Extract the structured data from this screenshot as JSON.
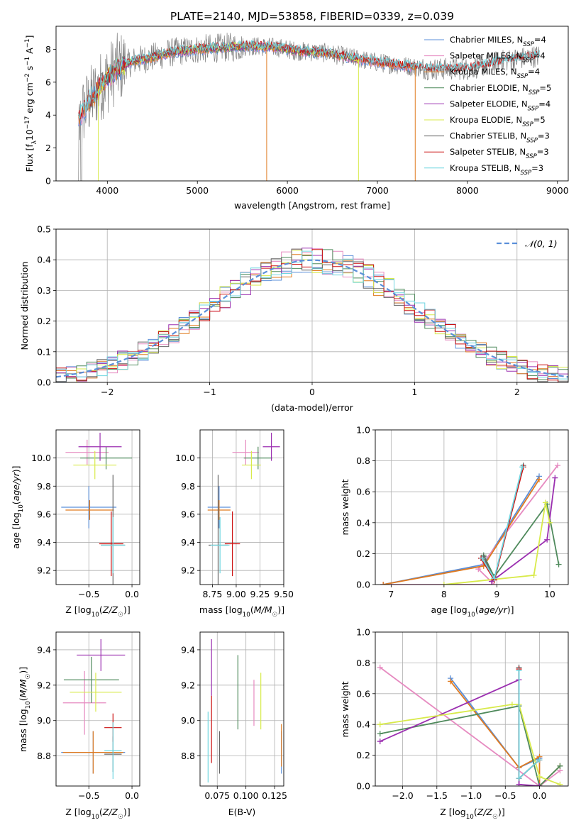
{
  "figure_title": "PLATE=2140, MJD=53858, FIBERID=0339, z=0.039",
  "colors": {
    "Chabrier MILES": "#5b8fd9",
    "Salpeter MILES": "#e68ac0",
    "Kroupa MILES": "#e07a1f",
    "Chabrier ELODIE": "#4f8a5c",
    "Salpeter ELODIE": "#9b2fb0",
    "Kroupa ELODIE": "#d8ea4a",
    "Chabrier STELIB": "#666666",
    "Salpeter STELIB": "#cc1111",
    "Kroupa STELIB": "#6fd6e0"
  },
  "chart_data": [
    {
      "id": "spectrum",
      "type": "line",
      "title": "PLATE=2140, MJD=53858, FIBERID=0339, z=0.039",
      "xlabel": "wavelength [Angstrom, rest frame]",
      "ylabel": "Flux [f_λ 10^-17 erg cm^-2 s^-1 A^-1]",
      "xlim": [
        3430,
        9120
      ],
      "ylim": [
        0,
        9.4
      ],
      "xticks": [
        4000,
        5000,
        6000,
        7000,
        8000,
        9000
      ],
      "yticks": [
        0,
        2,
        4,
        6,
        8
      ],
      "grid": false,
      "legend_position": "upper-right",
      "legend": [
        {
          "label": "Chabrier MILES",
          "nssp": "4"
        },
        {
          "label": "Salpeter MILES",
          "nssp": "4"
        },
        {
          "label": "Kroupa MILES",
          "nssp": "4"
        },
        {
          "label": "Chabrier ELODIE",
          "nssp": "5"
        },
        {
          "label": "Salpeter ELODIE",
          "nssp": "4"
        },
        {
          "label": "Kroupa ELODIE",
          "nssp": "5"
        },
        {
          "label": "Chabrier STELIB",
          "nssp": "3"
        },
        {
          "label": "Salpeter STELIB",
          "nssp": "3"
        },
        {
          "label": "Kroupa STELIB",
          "nssp": "3"
        }
      ],
      "continuum": [
        [
          3680,
          3.8
        ],
        [
          3800,
          4.8
        ],
        [
          3900,
          5.6
        ],
        [
          4000,
          6.2
        ],
        [
          4100,
          6.8
        ],
        [
          4300,
          7.3
        ],
        [
          4500,
          7.5
        ],
        [
          4700,
          7.8
        ],
        [
          5000,
          8.0
        ],
        [
          5300,
          8.1
        ],
        [
          5600,
          8.2
        ],
        [
          5900,
          8.1
        ],
        [
          6100,
          7.9
        ],
        [
          6400,
          7.8
        ],
        [
          6700,
          7.5
        ],
        [
          7000,
          7.2
        ],
        [
          7300,
          7.0
        ],
        [
          7600,
          6.8
        ],
        [
          8000,
          6.8
        ],
        [
          8400,
          7.3
        ],
        [
          8800,
          7.6
        ],
        [
          9000,
          7.7
        ]
      ],
      "noisy_line": {
        "x_start": 3680,
        "x_end": 8800,
        "step": 5,
        "noise": 0.6
      },
      "model_segments": [
        {
          "series": "Chabrier MILES",
          "x_start": 3680,
          "x_end": 7400
        },
        {
          "series": "Salpeter MILES",
          "x_start": 3680,
          "x_end": 7400
        },
        {
          "series": "Kroupa MILES",
          "x_start": 3680,
          "x_end": 7420
        },
        {
          "series": "Chabrier ELODIE",
          "x_start": 3900,
          "x_end": 6800
        },
        {
          "series": "Salpeter ELODIE",
          "x_start": 3900,
          "x_end": 6800
        },
        {
          "series": "Kroupa ELODIE",
          "x_start": 3900,
          "x_end": 6800
        },
        {
          "series": "Chabrier STELIB",
          "x_start": 3680,
          "x_end": 8800
        },
        {
          "series": "Salpeter STELIB",
          "x_start": 3680,
          "x_end": 8800
        },
        {
          "series": "Kroupa STELIB",
          "x_start": 3680,
          "x_end": 8800
        }
      ]
    },
    {
      "id": "residuals",
      "type": "histogram",
      "xlabel": "(data-model)/error",
      "ylabel": "Normed distribution",
      "xlim": [
        -2.5,
        2.5
      ],
      "ylim": [
        0,
        0.5
      ],
      "xticks": [
        -2,
        -1,
        0,
        1,
        2
      ],
      "yticks": [
        0.0,
        0.1,
        0.2,
        0.3,
        0.4,
        0.5
      ],
      "grid": true,
      "legend_position": "upper-right",
      "reference_curve": "𝒩(0, 1)",
      "bin_width": 0.1,
      "n_histograms": 9,
      "jitter": 0.03
    },
    {
      "id": "age_vs_z",
      "type": "errorbar",
      "xlabel": "Z [log10(Z/Z☉)]",
      "ylabel": "age  [log10(age/yr)]",
      "xlim": [
        -0.88,
        0.09
      ],
      "ylim": [
        9.1,
        10.2
      ],
      "xticks": [
        -0.5,
        0.0
      ],
      "yticks": [
        9.2,
        9.4,
        9.6,
        9.8,
        10.0
      ],
      "grid": true,
      "points": [
        {
          "series": "Chabrier MILES",
          "x": -0.5,
          "y": 9.65,
          "xerr": 0.32,
          "yerr": 0.15
        },
        {
          "series": "Salpeter MILES",
          "x": -0.52,
          "y": 10.04,
          "xerr": 0.25,
          "yerr": 0.09
        },
        {
          "series": "Kroupa MILES",
          "x": -0.49,
          "y": 9.63,
          "xerr": 0.28,
          "yerr": 0.07
        },
        {
          "series": "Chabrier ELODIE",
          "x": -0.3,
          "y": 10.0,
          "xerr": 0.3,
          "yerr": 0.08
        },
        {
          "series": "Salpeter ELODIE",
          "x": -0.37,
          "y": 10.08,
          "xerr": 0.25,
          "yerr": 0.1
        },
        {
          "series": "Kroupa ELODIE",
          "x": -0.43,
          "y": 9.95,
          "xerr": 0.25,
          "yerr": 0.1
        },
        {
          "series": "Chabrier STELIB",
          "x": -0.22,
          "y": 9.38,
          "xerr": 0.14,
          "yerr": 0.5
        },
        {
          "series": "Salpeter STELIB",
          "x": -0.24,
          "y": 9.39,
          "xerr": 0.14,
          "yerr": 0.23
        },
        {
          "series": "Kroupa STELIB",
          "x": -0.22,
          "y": 9.38,
          "xerr": 0.14,
          "yerr": 0.2
        }
      ]
    },
    {
      "id": "age_vs_mass",
      "type": "errorbar",
      "xlabel": "mass [log10(M/M☉)]",
      "ylabel": "",
      "xlim": [
        8.62,
        9.5
      ],
      "ylim": [
        9.1,
        10.2
      ],
      "xticks": [
        8.75,
        9.0,
        9.25,
        9.5
      ],
      "yticks": [
        9.2,
        9.4,
        9.6,
        9.8,
        10.0
      ],
      "grid": true,
      "points": [
        {
          "series": "Chabrier MILES",
          "x": 8.82,
          "y": 9.65,
          "xerr": 0.12,
          "yerr": 0.15
        },
        {
          "series": "Salpeter MILES",
          "x": 9.1,
          "y": 10.04,
          "xerr": 0.14,
          "yerr": 0.09
        },
        {
          "series": "Kroupa MILES",
          "x": 8.82,
          "y": 9.63,
          "xerr": 0.12,
          "yerr": 0.07
        },
        {
          "series": "Chabrier ELODIE",
          "x": 9.23,
          "y": 10.0,
          "xerr": 0.15,
          "yerr": 0.08
        },
        {
          "series": "Salpeter ELODIE",
          "x": 9.37,
          "y": 10.08,
          "xerr": 0.09,
          "yerr": 0.1
        },
        {
          "series": "Kroupa ELODIE",
          "x": 9.16,
          "y": 9.95,
          "xerr": 0.1,
          "yerr": 0.1
        },
        {
          "series": "Chabrier STELIB",
          "x": 8.81,
          "y": 9.38,
          "xerr": 0.1,
          "yerr": 0.5
        },
        {
          "series": "Salpeter STELIB",
          "x": 8.96,
          "y": 9.39,
          "xerr": 0.08,
          "yerr": 0.23
        },
        {
          "series": "Kroupa STELIB",
          "x": 8.83,
          "y": 9.38,
          "xerr": 0.1,
          "yerr": 0.2
        }
      ]
    },
    {
      "id": "mass_weight_vs_age",
      "type": "line",
      "xlabel": "age  [log10(age/yr)]",
      "ylabel": "mass weight",
      "xlim": [
        6.7,
        10.35
      ],
      "ylim": [
        0,
        1.0
      ],
      "xticks": [
        7,
        8,
        9,
        10
      ],
      "yticks": [
        0.0,
        0.2,
        0.4,
        0.6,
        0.8,
        1.0
      ],
      "grid": true,
      "series": [
        {
          "name": "Chabrier MILES",
          "points": [
            [
              6.85,
              0.0
            ],
            [
              8.75,
              0.13
            ],
            [
              9.8,
              0.7
            ]
          ]
        },
        {
          "name": "Salpeter MILES",
          "points": [
            [
              6.85,
              0.0
            ],
            [
              8.95,
              0.0
            ],
            [
              8.65,
              0.1
            ],
            [
              10.15,
              0.77
            ]
          ]
        },
        {
          "name": "Kroupa MILES",
          "points": [
            [
              6.85,
              0.0
            ],
            [
              8.75,
              0.12
            ],
            [
              9.8,
              0.68
            ]
          ]
        },
        {
          "name": "Chabrier ELODIE",
          "points": [
            [
              8.75,
              0.19
            ],
            [
              8.95,
              0.05
            ],
            [
              9.95,
              0.52
            ],
            [
              10.17,
              0.13
            ]
          ]
        },
        {
          "name": "Salpeter ELODIE",
          "points": [
            [
              8.9,
              0.02
            ],
            [
              9.95,
              0.29
            ],
            [
              10.1,
              0.69
            ]
          ]
        },
        {
          "name": "Kroupa ELODIE",
          "points": [
            [
              8.0,
              0.0
            ],
            [
              9.7,
              0.06
            ],
            [
              9.92,
              0.53
            ],
            [
              10.0,
              0.4
            ]
          ]
        },
        {
          "name": "Chabrier STELIB",
          "points": [
            [
              8.75,
              0.18
            ],
            [
              8.95,
              0.03
            ],
            [
              9.5,
              0.77
            ]
          ]
        },
        {
          "name": "Salpeter STELIB",
          "points": [
            [
              8.7,
              0.17
            ],
            [
              8.95,
              0.03
            ],
            [
              9.5,
              0.76
            ]
          ]
        },
        {
          "name": "Kroupa STELIB",
          "points": [
            [
              8.72,
              0.17
            ],
            [
              8.95,
              0.04
            ],
            [
              9.48,
              0.76
            ]
          ]
        }
      ]
    },
    {
      "id": "mass_vs_z",
      "type": "errorbar",
      "xlabel": "Z [log10(Z/Z☉)]",
      "ylabel": "mass [log10(M/M☉)]",
      "xlim": [
        -0.88,
        0.09
      ],
      "ylim": [
        8.63,
        9.5
      ],
      "xticks": [
        -0.5,
        0.0
      ],
      "yticks": [
        8.8,
        9.0,
        9.2,
        9.4
      ],
      "grid": true,
      "points": [
        {
          "series": "Chabrier MILES",
          "x": -0.45,
          "y": 8.82,
          "xerr": 0.37,
          "yerr": 0.12
        },
        {
          "series": "Salpeter MILES",
          "x": -0.55,
          "y": 9.1,
          "xerr": 0.25,
          "yerr": 0.18
        },
        {
          "series": "Kroupa MILES",
          "x": -0.45,
          "y": 8.82,
          "xerr": 0.35,
          "yerr": 0.12
        },
        {
          "series": "Chabrier ELODIE",
          "x": -0.47,
          "y": 9.23,
          "xerr": 0.32,
          "yerr": 0.13
        },
        {
          "series": "Salpeter ELODIE",
          "x": -0.36,
          "y": 9.37,
          "xerr": 0.28,
          "yerr": 0.09
        },
        {
          "series": "Kroupa ELODIE",
          "x": -0.42,
          "y": 9.16,
          "xerr": 0.3,
          "yerr": 0.11
        },
        {
          "series": "Chabrier STELIB",
          "x": -0.22,
          "y": 8.81,
          "xerr": 0.1,
          "yerr": 0.1
        },
        {
          "series": "Salpeter STELIB",
          "x": -0.22,
          "y": 8.96,
          "xerr": 0.1,
          "yerr": 0.08
        },
        {
          "series": "Kroupa STELIB",
          "x": -0.22,
          "y": 8.83,
          "xerr": 0.1,
          "yerr": 0.16
        }
      ]
    },
    {
      "id": "mass_vs_ebv",
      "type": "errorbar",
      "xlabel": "E(B-V)",
      "ylabel": "",
      "xlim": [
        0.06,
        0.133
      ],
      "ylim": [
        8.63,
        9.5
      ],
      "xticks": [
        0.075,
        0.1,
        0.125
      ],
      "yticks": [
        8.8,
        9.0,
        9.2,
        9.4
      ],
      "grid": true,
      "points": [
        {
          "series": "Chabrier MILES",
          "x": 0.131,
          "y": 8.82,
          "yerr": 0.12
        },
        {
          "series": "Salpeter MILES",
          "x": 0.107,
          "y": 9.1,
          "yerr": 0.13
        },
        {
          "series": "Kroupa MILES",
          "x": 0.131,
          "y": 8.86,
          "yerr": 0.12
        },
        {
          "series": "Chabrier ELODIE",
          "x": 0.093,
          "y": 9.16,
          "yerr": 0.21
        },
        {
          "series": "Salpeter ELODIE",
          "x": 0.07,
          "y": 9.3,
          "yerr": 0.16
        },
        {
          "series": "Kroupa ELODIE",
          "x": 0.113,
          "y": 9.11,
          "yerr": 0.16
        },
        {
          "series": "Chabrier STELIB",
          "x": 0.077,
          "y": 8.82,
          "yerr": 0.12
        },
        {
          "series": "Salpeter STELIB",
          "x": 0.07,
          "y": 8.95,
          "yerr": 0.19
        },
        {
          "series": "Kroupa STELIB",
          "x": 0.067,
          "y": 8.85,
          "yerr": 0.2
        }
      ]
    },
    {
      "id": "mass_weight_vs_z",
      "type": "line",
      "xlabel": "Z [log10(Z/Z☉)]",
      "ylabel": "mass weight",
      "xlim": [
        -2.4,
        0.42
      ],
      "ylim": [
        0,
        1.0
      ],
      "xticks": [
        -2.0,
        -1.5,
        -1.0,
        -0.5,
        0.0
      ],
      "yticks": [
        0.0,
        0.2,
        0.4,
        0.6,
        0.8,
        1.0
      ],
      "grid": true,
      "series": [
        {
          "name": "Chabrier MILES",
          "points": [
            [
              -1.3,
              0.7
            ],
            [
              -0.3,
              0.12
            ],
            [
              0.0,
              0.18
            ]
          ]
        },
        {
          "name": "Salpeter MILES",
          "points": [
            [
              -2.33,
              0.77
            ],
            [
              0.0,
              0.0
            ],
            [
              0.3,
              0.1
            ]
          ]
        },
        {
          "name": "Kroupa MILES",
          "points": [
            [
              -1.3,
              0.68
            ],
            [
              -0.3,
              0.12
            ],
            [
              0.0,
              0.19
            ],
            [
              0.0,
              0.0
            ],
            [
              0.3,
              0.13
            ]
          ]
        },
        {
          "name": "Chabrier ELODIE",
          "points": [
            [
              -2.33,
              0.34
            ],
            [
              -0.3,
              0.52
            ],
            [
              0.0,
              0.0
            ],
            [
              0.3,
              0.13
            ]
          ]
        },
        {
          "name": "Salpeter ELODIE",
          "points": [
            [
              -2.33,
              0.29
            ],
            [
              -0.3,
              0.69
            ],
            [
              -0.3,
              0.01
            ],
            [
              0.0,
              0.0
            ]
          ]
        },
        {
          "name": "Kroupa ELODIE",
          "points": [
            [
              -2.33,
              0.4
            ],
            [
              -0.4,
              0.53
            ],
            [
              -0.3,
              0.53
            ],
            [
              0.0,
              0.06
            ],
            [
              0.3,
              0.01
            ]
          ]
        },
        {
          "name": "Chabrier STELIB",
          "points": [
            [
              -0.3,
              0.77
            ],
            [
              -0.3,
              0.05
            ],
            [
              0.0,
              0.17
            ]
          ]
        },
        {
          "name": "Salpeter STELIB",
          "points": [
            [
              -0.3,
              0.76
            ],
            [
              -0.3,
              0.05
            ],
            [
              0.0,
              0.17
            ]
          ]
        },
        {
          "name": "Kroupa STELIB",
          "points": [
            [
              -0.3,
              0.75
            ],
            [
              -0.3,
              0.05
            ],
            [
              0.0,
              0.17
            ]
          ]
        }
      ]
    }
  ]
}
